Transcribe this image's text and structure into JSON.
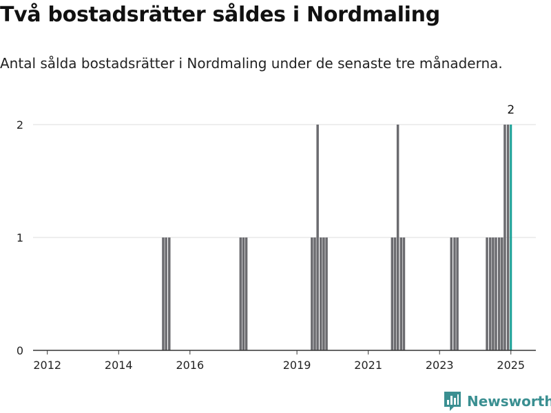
{
  "header": {
    "title": "Två bostadsrätter såldes i Nordmaling",
    "subtitle": "Antal sålda bostadsrätter i Nordmaling under de senaste tre månaderna."
  },
  "brand": {
    "name": "Newsworthy",
    "icon": "bar-chart-logo-icon",
    "color": "#3a8f91"
  },
  "colors": {
    "bar": "#6b6b6f",
    "highlight": "#18a096",
    "grid": "#dddddd",
    "axis": "#333333"
  },
  "chart_data": {
    "type": "bar",
    "title": "Två bostadsrätter såldes i Nordmaling",
    "subtitle": "Antal sålda bostadsrätter i Nordmaling under de senaste tre månaderna.",
    "xlabel": "",
    "ylabel": "",
    "ylim": [
      0,
      2
    ],
    "xlim": [
      2011.6,
      2025.7
    ],
    "grid": true,
    "yticks": [
      0,
      1,
      2
    ],
    "xticks": [
      2012,
      2014,
      2016,
      2019,
      2021,
      2023,
      2025
    ],
    "xtick_labels": [
      "2012",
      "2014",
      "2016",
      "2019",
      "2021",
      "2023",
      "2025"
    ],
    "bar_width_years": 0.0833,
    "bars": [
      {
        "x": 2015.25,
        "value": 1
      },
      {
        "x": 2015.33,
        "value": 1
      },
      {
        "x": 2015.42,
        "value": 1
      },
      {
        "x": 2017.42,
        "value": 1
      },
      {
        "x": 2017.5,
        "value": 1
      },
      {
        "x": 2017.58,
        "value": 1
      },
      {
        "x": 2019.42,
        "value": 1
      },
      {
        "x": 2019.5,
        "value": 1
      },
      {
        "x": 2019.58,
        "value": 2
      },
      {
        "x": 2019.67,
        "value": 1
      },
      {
        "x": 2019.75,
        "value": 1
      },
      {
        "x": 2019.83,
        "value": 1
      },
      {
        "x": 2021.67,
        "value": 1
      },
      {
        "x": 2021.75,
        "value": 1
      },
      {
        "x": 2021.83,
        "value": 2
      },
      {
        "x": 2021.92,
        "value": 1
      },
      {
        "x": 2022.0,
        "value": 1
      },
      {
        "x": 2023.33,
        "value": 1
      },
      {
        "x": 2023.42,
        "value": 1
      },
      {
        "x": 2023.5,
        "value": 1
      },
      {
        "x": 2024.33,
        "value": 1
      },
      {
        "x": 2024.42,
        "value": 1
      },
      {
        "x": 2024.5,
        "value": 1
      },
      {
        "x": 2024.58,
        "value": 1
      },
      {
        "x": 2024.67,
        "value": 1
      },
      {
        "x": 2024.75,
        "value": 1
      },
      {
        "x": 2024.83,
        "value": 2
      },
      {
        "x": 2024.92,
        "value": 2
      }
    ],
    "highlight": {
      "x": 2025.0,
      "value": 2,
      "label": "2"
    }
  }
}
